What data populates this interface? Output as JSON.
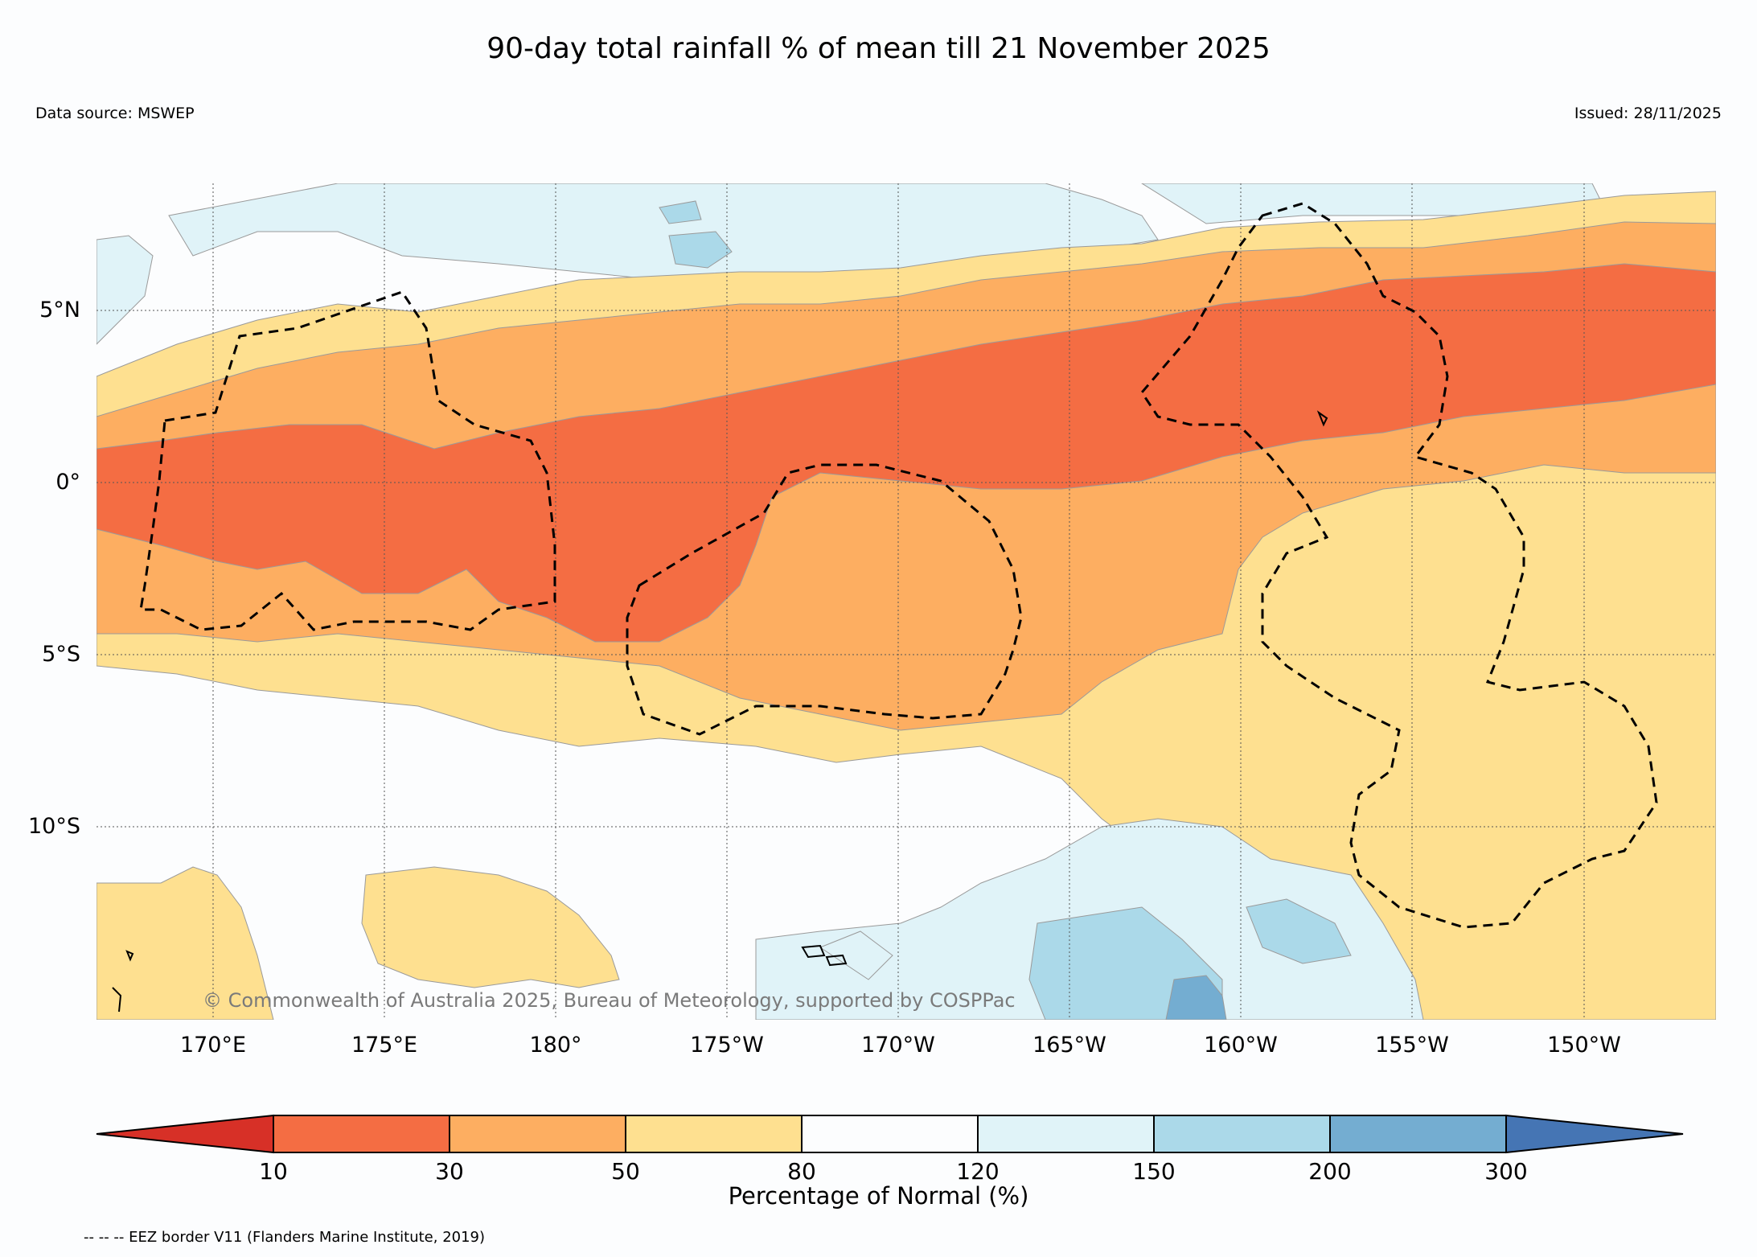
{
  "header": {
    "title": "90-day total rainfall % of mean till 21 November 2025",
    "data_source": "Data source: MSWEP",
    "issued": "Issued: 28/11/2025"
  },
  "map": {
    "lat_labels": [
      "5°N",
      "0°",
      "5°S",
      "10°S"
    ],
    "lon_labels": [
      "170°E",
      "175°E",
      "180°",
      "175°W",
      "170°W",
      "165°W",
      "160°W",
      "155°W",
      "150°W"
    ],
    "copyright": "© Commonwealth of Australia 2025, Bureau of Meteorology, supported by COSPPac",
    "category_colors": {
      "below_10": "#d73027",
      "10_30": "#f46d43",
      "30_50": "#fdae61",
      "50_80": "#fee090",
      "80_120": "#fcfdfe",
      "120_150": "#e0f3f8",
      "150_200": "#abd9e9",
      "200_300": "#74add1",
      "above_300": "#4575b4"
    }
  },
  "colorbar": {
    "ticks": [
      "10",
      "30",
      "50",
      "80",
      "120",
      "150",
      "200",
      "300"
    ],
    "label": "Percentage of Normal (%)"
  },
  "legend": {
    "eez_note": "-- -- -- EEZ border V11 (Flanders Marine Institute, 2019)"
  }
}
